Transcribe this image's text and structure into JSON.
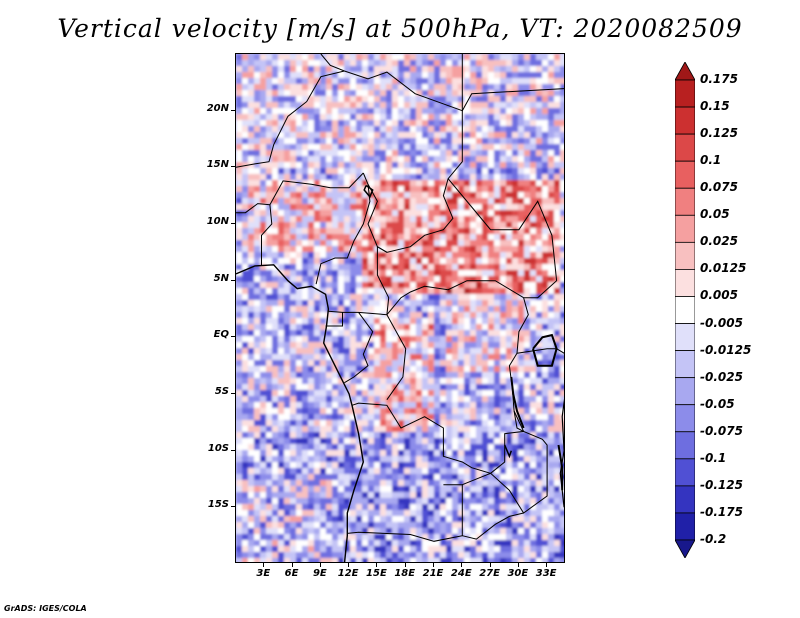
{
  "title": "Vertical velocity [m/s] at 500hPa, VT: 2020082509",
  "footer": "GrADS: IGES/COLA",
  "axes": {
    "latitude_labels": [
      "20N",
      "15N",
      "10N",
      "5N",
      "EQ",
      "5S",
      "10S",
      "15S"
    ],
    "latitude_values": [
      20,
      15,
      10,
      5,
      0,
      -5,
      -10,
      -15
    ],
    "longitude_labels": [
      "3E",
      "6E",
      "9E",
      "12E",
      "15E",
      "18E",
      "21E",
      "24E",
      "27E",
      "30E",
      "33E"
    ],
    "longitude_values": [
      3,
      6,
      9,
      12,
      15,
      18,
      21,
      24,
      27,
      30,
      33
    ],
    "lat_range": [
      -20,
      25
    ],
    "lon_range": [
      0,
      35
    ]
  },
  "colorbar": {
    "labels": [
      "0.175",
      "0.15",
      "0.125",
      "0.1",
      "0.075",
      "0.05",
      "0.025",
      "0.0125",
      "0.005",
      "-0.005",
      "-0.0125",
      "-0.025",
      "-0.05",
      "-0.075",
      "-0.1",
      "-0.125",
      "-0.175",
      "-0.2"
    ],
    "colors": [
      "#a01818",
      "#b82020",
      "#cc3030",
      "#dc4848",
      "#e86060",
      "#f08080",
      "#f5a0a0",
      "#f8c0c0",
      "#fce0e0",
      "#ffffff",
      "#e0e0fa",
      "#c4c4f6",
      "#a8a8f0",
      "#8c8cea",
      "#6e6ee0",
      "#5050d4",
      "#3434c0",
      "#2020a8",
      "#18188c"
    ]
  }
}
